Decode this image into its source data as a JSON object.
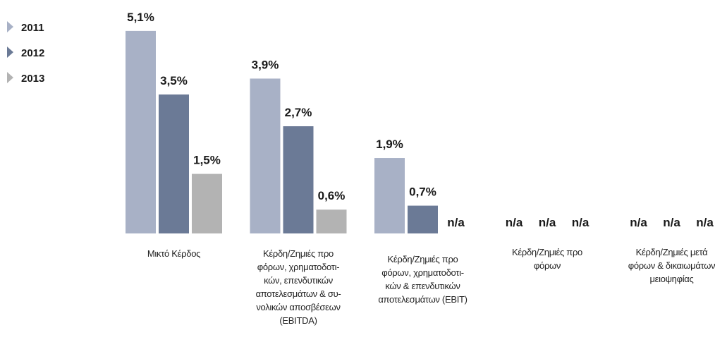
{
  "chart_data": {
    "type": "bar",
    "categories": [
      "Μικτό Κέρδος",
      "Κέρδη/Ζημιές προ\nφόρων, χρηματοδοτι-\nκών, επενδυτικών\nαποτελεσμάτων & συ-\nνολικών αποσβέσεων\n(EBITDA)",
      "Κέρδη/Ζημιές προ\nφόρων, χρηματοδοτι-\nκών & επενδυτικών\nαποτελεσμάτων (EBIT)",
      "Κέρδη/Ζημιές προ\nφόρων",
      "Κέρδη/Ζημιές μετά\nφόρων & δικαιωμάτων\nμειοψηφίας"
    ],
    "series": [
      {
        "name": "2011",
        "color": "#a8b1c6",
        "values": [
          5.1,
          3.9,
          1.9,
          null,
          null
        ],
        "value_labels": [
          "5,1%",
          "3,9%",
          "1,9%",
          "n/a",
          "n/a"
        ]
      },
      {
        "name": "2012",
        "color": "#6b7a96",
        "values": [
          3.5,
          2.7,
          0.7,
          null,
          null
        ],
        "value_labels": [
          "3,5%",
          "2,7%",
          "0,7%",
          "n/a",
          "n/a"
        ]
      },
      {
        "name": "2013",
        "color": "#b3b3b3",
        "values": [
          1.5,
          0.6,
          null,
          null,
          null
        ],
        "value_labels": [
          "1,5%",
          "0,6%",
          "n/a",
          "n/a",
          "n/a"
        ]
      }
    ],
    "legend": "top-left"
  }
}
